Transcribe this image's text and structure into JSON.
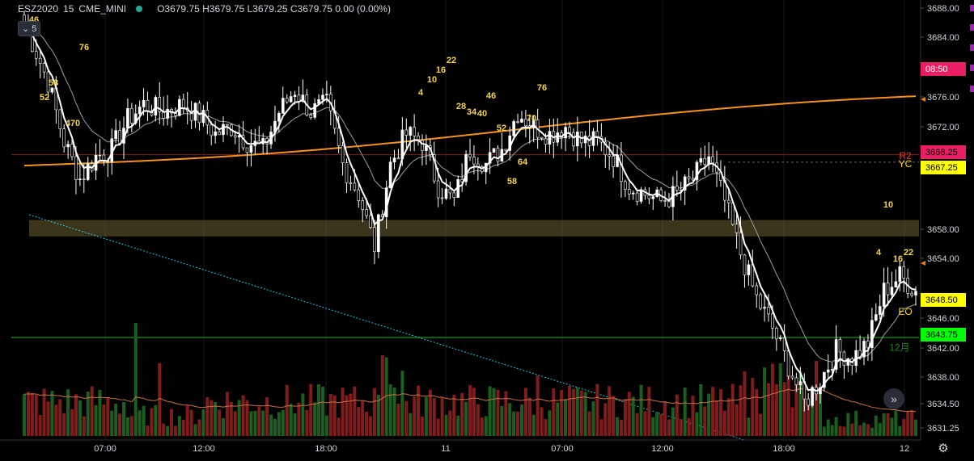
{
  "legend": {
    "symbol": "ESZ2020",
    "interval": "15",
    "exchange": "CME_MINI",
    "ohlc_text": "O3679.75 H3679.75 L3679.25 C3679.75 0.00 (0.00%)",
    "indicator_count": "5",
    "status_color": "#26a69a"
  },
  "icons": {
    "scroll_right": "double-chevron-right-icon",
    "settings": "gear-icon",
    "collapse": "chevron-down-icon"
  },
  "colors": {
    "background": "#000000",
    "up_candle": "#ffffff",
    "down_candle": "#000000",
    "ema_fast": "#ffffff",
    "ema_slow": "#9e9e9e",
    "sma_long": "#f7931a",
    "zone": "#6b6231",
    "trendline": "#26c6da",
    "support_line": "#0b5e0b",
    "volume_up": "#1b5e20",
    "volume_down": "#7f1d1d",
    "volume_ma": "#c8704a"
  },
  "price_axis": {
    "ticks": [
      "3688.00",
      "3684.00",
      "3680.00",
      "3676.00",
      "3672.00",
      "3658.00",
      "3654.00",
      "3646.00",
      "3642.00",
      "3638.00",
      "3634.50",
      "3631.25"
    ],
    "tags": [
      {
        "text": "08:50",
        "bg": "#e91e63",
        "fg": "#ffffff",
        "price": 3680.0
      },
      {
        "text": "3668.25",
        "bg": "#e91e63",
        "fg": "#000000",
        "price": 3668.25
      },
      {
        "text": "3667.25",
        "bg": "#ffff00",
        "fg": "#000000",
        "price": 3667.25
      },
      {
        "text": "3648.50",
        "bg": "#ffff00",
        "fg": "#000000",
        "price": 3648.5
      },
      {
        "text": "3643.75",
        "bg": "#00ff00",
        "fg": "#000000",
        "price": 3643.75
      }
    ]
  },
  "time_axis": [
    "07:00",
    "12:00",
    "18:00",
    "11",
    "07:00",
    "12:00",
    "18:00",
    "12"
  ],
  "labels": [
    {
      "text": "R2",
      "color": "#e53935",
      "price": 3668.1
    },
    {
      "text": "YC",
      "color": "#ffd600",
      "price": 3667.0
    },
    {
      "text": "EO",
      "color": "#ffd600",
      "price": 3647.2
    },
    {
      "text": "12月",
      "color": "#1b8f1b",
      "price": 3642.4
    }
  ],
  "annotations": [
    "46",
    "76",
    "58",
    "52",
    "470",
    "4",
    "10",
    "16",
    "22",
    "28",
    "34",
    "40",
    "46",
    "52",
    "76",
    "70",
    "64",
    "58",
    "10",
    "4",
    "16",
    "22"
  ],
  "chart_data": {
    "type": "candlestick",
    "symbol": "ESZ2020",
    "interval": "15",
    "ohlc_last": {
      "open": 3679.75,
      "high": 3679.75,
      "low": 3679.25,
      "close": 3679.75,
      "change": 0.0,
      "change_pct": "0.00%"
    },
    "x_ticks": [
      "07:00",
      "12:00",
      "18:00",
      "11",
      "07:00",
      "12:00",
      "18:00",
      "12"
    ],
    "y_ticks": [
      3688.0,
      3684.0,
      3680.0,
      3676.0,
      3672.0,
      3658.0,
      3654.0,
      3646.0,
      3642.0,
      3638.0,
      3634.5,
      3631.25
    ],
    "ylim": [
      3630.0,
      3689.0
    ],
    "horizontal_levels": [
      {
        "name": "R2",
        "price": 3668.25
      },
      {
        "name": "YC",
        "price": 3667.25
      },
      {
        "name": "EO",
        "price": 3648.5
      },
      {
        "name": "12月",
        "price": 3643.75
      }
    ],
    "zone": {
      "top": 3659.5,
      "bottom": 3657.3
    },
    "price_path": [
      [
        0,
        3686
      ],
      [
        6,
        3678
      ],
      [
        10,
        3670
      ],
      [
        14,
        3665
      ],
      [
        18,
        3668
      ],
      [
        22,
        3669
      ],
      [
        26,
        3673
      ],
      [
        30,
        3675
      ],
      [
        35,
        3674
      ],
      [
        40,
        3675
      ],
      [
        45,
        3673
      ],
      [
        48,
        3671
      ],
      [
        52,
        3672
      ],
      [
        56,
        3670
      ],
      [
        60,
        3669
      ],
      [
        64,
        3674
      ],
      [
        68,
        3677
      ],
      [
        72,
        3674
      ],
      [
        76,
        3675
      ],
      [
        80,
        3667
      ],
      [
        84,
        3663
      ],
      [
        88,
        3656
      ],
      [
        92,
        3667
      ],
      [
        96,
        3671
      ],
      [
        100,
        3670
      ],
      [
        104,
        3664
      ],
      [
        108,
        3662
      ],
      [
        112,
        3669
      ],
      [
        116,
        3667
      ],
      [
        120,
        3669
      ],
      [
        124,
        3674
      ],
      [
        128,
        3672
      ],
      [
        132,
        3671
      ],
      [
        136,
        3672
      ],
      [
        140,
        3670
      ],
      [
        144,
        3670
      ],
      [
        148,
        3668
      ],
      [
        152,
        3664
      ],
      [
        156,
        3663
      ],
      [
        160,
        3662
      ],
      [
        164,
        3663
      ],
      [
        168,
        3665
      ],
      [
        172,
        3668
      ],
      [
        176,
        3662
      ],
      [
        180,
        3655
      ],
      [
        184,
        3649
      ],
      [
        188,
        3645
      ],
      [
        192,
        3640
      ],
      [
        196,
        3635
      ],
      [
        200,
        3638
      ],
      [
        204,
        3642
      ],
      [
        208,
        3641
      ],
      [
        212,
        3643
      ],
      [
        216,
        3650
      ],
      [
        220,
        3652
      ],
      [
        224,
        3650
      ]
    ]
  }
}
